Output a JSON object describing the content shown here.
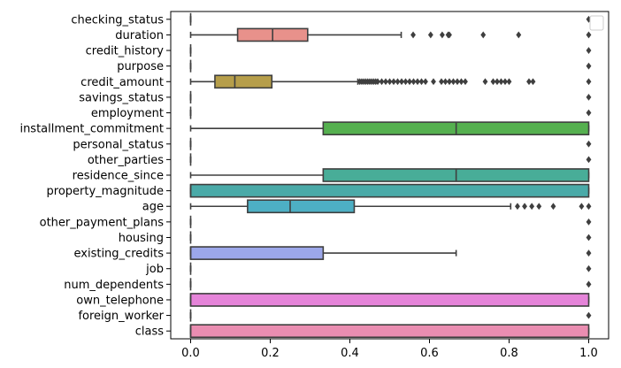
{
  "chart_data": {
    "type": "boxplot",
    "orientation": "horizontal",
    "title": "",
    "xlabel": "",
    "ylabel": "",
    "xlim": [
      -0.05,
      1.05
    ],
    "xticks": [
      0.0,
      0.2,
      0.4,
      0.6,
      0.8,
      1.0
    ],
    "xtick_labels": [
      "0.0",
      "0.2",
      "0.4",
      "0.6",
      "0.8",
      "1.0"
    ],
    "grid": false,
    "legend": {
      "visible": true,
      "location": "upper right",
      "entries": []
    },
    "box_edge_color": "#3f3f3f",
    "categories": [
      {
        "label": "checking_status",
        "color": "#e8918b",
        "q1": 0.0,
        "median": 0.0,
        "q3": 0.0,
        "whisker_low": 0.0,
        "whisker_high": 0.0,
        "outliers": [
          1.0
        ]
      },
      {
        "label": "duration",
        "color": "#e8918b",
        "q1": 0.118,
        "median": 0.206,
        "q3": 0.294,
        "whisker_low": 0.0,
        "whisker_high": 0.529,
        "outliers": [
          0.559,
          0.603,
          0.632,
          0.647,
          0.65,
          0.735,
          0.824,
          1.0
        ]
      },
      {
        "label": "credit_history",
        "color": "#e29a72",
        "q1": 0.0,
        "median": 0.0,
        "q3": 0.0,
        "whisker_low": 0.0,
        "whisker_high": 0.0,
        "outliers": [
          1.0
        ]
      },
      {
        "label": "purpose",
        "color": "#d2a35a",
        "q1": 0.0,
        "median": 0.0,
        "q3": 0.0,
        "whisker_low": 0.0,
        "whisker_high": 0.0,
        "outliers": [
          1.0
        ]
      },
      {
        "label": "credit_amount",
        "color": "#b69e4a",
        "q1": 0.061,
        "median": 0.111,
        "q3": 0.204,
        "whisker_low": 0.0,
        "whisker_high": 0.42,
        "outliers": [
          0.425,
          0.43,
          0.435,
          0.44,
          0.445,
          0.45,
          0.455,
          0.46,
          0.465,
          0.47,
          0.48,
          0.49,
          0.5,
          0.51,
          0.52,
          0.53,
          0.54,
          0.55,
          0.56,
          0.57,
          0.58,
          0.59,
          0.61,
          0.63,
          0.64,
          0.65,
          0.66,
          0.67,
          0.68,
          0.69,
          0.74,
          0.76,
          0.77,
          0.78,
          0.79,
          0.8,
          0.85,
          0.86,
          1.0
        ]
      },
      {
        "label": "savings_status",
        "color": "#a0a44a",
        "q1": 0.0,
        "median": 0.0,
        "q3": 0.0,
        "whisker_low": 0.0,
        "whisker_high": 0.0,
        "outliers": [
          1.0
        ]
      },
      {
        "label": "employment",
        "color": "#7fae4d",
        "q1": 0.0,
        "median": 0.0,
        "q3": 0.0,
        "whisker_low": 0.0,
        "whisker_high": 0.0,
        "outliers": [
          1.0
        ]
      },
      {
        "label": "installment_commitment",
        "color": "#55b04f",
        "q1": 0.333,
        "median": 0.667,
        "q3": 1.0,
        "whisker_low": 0.0,
        "whisker_high": 1.0,
        "outliers": []
      },
      {
        "label": "personal_status",
        "color": "#4cb38a",
        "q1": 0.0,
        "median": 0.0,
        "q3": 0.0,
        "whisker_low": 0.0,
        "whisker_high": 0.0,
        "outliers": [
          1.0
        ]
      },
      {
        "label": "other_parties",
        "color": "#4bb09e",
        "q1": 0.0,
        "median": 0.0,
        "q3": 0.0,
        "whisker_low": 0.0,
        "whisker_high": 0.0,
        "outliers": [
          1.0
        ]
      },
      {
        "label": "residence_since",
        "color": "#48ad98",
        "q1": 0.333,
        "median": 0.667,
        "q3": 1.0,
        "whisker_low": 0.0,
        "whisker_high": 1.0,
        "outliers": []
      },
      {
        "label": "property_magnitude",
        "color": "#4aaaa8",
        "q1": 0.0,
        "median": 0.0,
        "q3": 1.0,
        "whisker_low": 0.0,
        "whisker_high": 1.0,
        "outliers": []
      },
      {
        "label": "age",
        "color": "#4dafc4",
        "q1": 0.143,
        "median": 0.25,
        "q3": 0.411,
        "whisker_low": 0.0,
        "whisker_high": 0.804,
        "outliers": [
          0.821,
          0.839,
          0.857,
          0.875,
          0.911,
          0.982,
          1.0
        ]
      },
      {
        "label": "other_payment_plans",
        "color": "#56b3d8",
        "q1": 0.0,
        "median": 0.0,
        "q3": 0.0,
        "whisker_low": 0.0,
        "whisker_high": 0.0,
        "outliers": [
          1.0
        ]
      },
      {
        "label": "housing",
        "color": "#6fb0e6",
        "q1": 0.0,
        "median": 0.0,
        "q3": 0.0,
        "whisker_low": 0.0,
        "whisker_high": 0.0,
        "outliers": [
          1.0
        ]
      },
      {
        "label": "existing_credits",
        "color": "#9ca7ea",
        "q1": 0.0,
        "median": 0.0,
        "q3": 0.333,
        "whisker_low": 0.0,
        "whisker_high": 0.667,
        "outliers": [
          1.0
        ]
      },
      {
        "label": "job",
        "color": "#b49ceb",
        "q1": 0.0,
        "median": 0.0,
        "q3": 0.0,
        "whisker_low": 0.0,
        "whisker_high": 0.0,
        "outliers": [
          1.0
        ]
      },
      {
        "label": "num_dependents",
        "color": "#cf90e6",
        "q1": 0.0,
        "median": 0.0,
        "q3": 0.0,
        "whisker_low": 0.0,
        "whisker_high": 0.0,
        "outliers": [
          1.0
        ]
      },
      {
        "label": "own_telephone",
        "color": "#e584d9",
        "q1": 0.0,
        "median": 0.0,
        "q3": 1.0,
        "whisker_low": 0.0,
        "whisker_high": 1.0,
        "outliers": []
      },
      {
        "label": "foreign_worker",
        "color": "#e98ac2",
        "q1": 0.0,
        "median": 0.0,
        "q3": 0.0,
        "whisker_low": 0.0,
        "whisker_high": 0.0,
        "outliers": [
          1.0
        ]
      },
      {
        "label": "class",
        "color": "#ea8db1",
        "q1": 0.0,
        "median": 0.0,
        "q3": 1.0,
        "whisker_low": 0.0,
        "whisker_high": 1.0,
        "outliers": []
      }
    ]
  }
}
